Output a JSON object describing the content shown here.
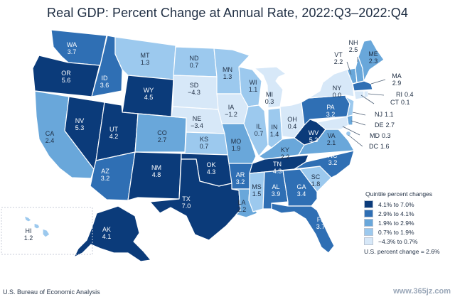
{
  "title": "Real GDP: Percent Change at Annual Rate, 2022:Q3–2022:Q4",
  "source": "U.S. Bureau of Economic Analysis",
  "watermark": "www.365jz.com",
  "colors": {
    "q1": "#0b3b7a",
    "q2": "#2f6fb4",
    "q3": "#69a7da",
    "q4": "#9cc9ee",
    "q5": "#d7e8f8"
  },
  "legend": {
    "title": "Quintile percent changes",
    "items": [
      {
        "label": "4.1% to 7.0%",
        "color": "#0b3b7a"
      },
      {
        "label": "2.9% to 4.1%",
        "color": "#2f6fb4"
      },
      {
        "label": "1.9% to 2.9%",
        "color": "#69a7da"
      },
      {
        "label": "0.7% to 1.9%",
        "color": "#9cc9ee"
      },
      {
        "label": "−4.3% to 0.7%",
        "color": "#d7e8f8"
      }
    ],
    "note": "U.S. percent change = 2.6%"
  },
  "states": {
    "WA": {
      "abbr": "WA",
      "value": "3.7"
    },
    "OR": {
      "abbr": "OR",
      "value": "5.6"
    },
    "CA": {
      "abbr": "CA",
      "value": "2.4"
    },
    "NV": {
      "abbr": "NV",
      "value": "5.3"
    },
    "ID": {
      "abbr": "ID",
      "value": "3.6"
    },
    "MT": {
      "abbr": "MT",
      "value": "1.3"
    },
    "WY": {
      "abbr": "WY",
      "value": "4.5"
    },
    "UT": {
      "abbr": "UT",
      "value": "4.2"
    },
    "AZ": {
      "abbr": "AZ",
      "value": "3.2"
    },
    "CO": {
      "abbr": "CO",
      "value": "2.7"
    },
    "NM": {
      "abbr": "NM",
      "value": "4.8"
    },
    "ND": {
      "abbr": "ND",
      "value": "0.7"
    },
    "SD": {
      "abbr": "SD",
      "value": "−4.3"
    },
    "NE": {
      "abbr": "NE",
      "value": "−3.4"
    },
    "KS": {
      "abbr": "KS",
      "value": "0.7"
    },
    "OK": {
      "abbr": "OK",
      "value": "4.3"
    },
    "TX": {
      "abbr": "TX",
      "value": "7.0"
    },
    "MN": {
      "abbr": "MN",
      "value": "1.3"
    },
    "IA": {
      "abbr": "IA",
      "value": "−1.2"
    },
    "MO": {
      "abbr": "MO",
      "value": "1.9"
    },
    "AR": {
      "abbr": "AR",
      "value": "3.2"
    },
    "LA": {
      "abbr": "LA",
      "value": "2.2"
    },
    "WI": {
      "abbr": "WI",
      "value": "1.1"
    },
    "IL": {
      "abbr": "IL",
      "value": "0.7"
    },
    "MI": {
      "abbr": "MI",
      "value": "0.3"
    },
    "IN": {
      "abbr": "IN",
      "value": "1.4"
    },
    "OH": {
      "abbr": "OH",
      "value": "0.4"
    },
    "KY": {
      "abbr": "KY",
      "value": "2.2"
    },
    "TN": {
      "abbr": "TN",
      "value": "4.3"
    },
    "MS": {
      "abbr": "MS",
      "value": "1.5"
    },
    "AL": {
      "abbr": "AL",
      "value": "3.9"
    },
    "GA": {
      "abbr": "GA",
      "value": "3.4"
    },
    "FL": {
      "abbr": "FL",
      "value": "3.7"
    },
    "SC": {
      "abbr": "SC",
      "value": "1.8"
    },
    "NC": {
      "abbr": "NC",
      "value": "3.2"
    },
    "VA": {
      "abbr": "VA",
      "value": "2.1"
    },
    "WV": {
      "abbr": "WV",
      "value": "5.2"
    },
    "PA": {
      "abbr": "PA",
      "value": "3.2"
    },
    "NY": {
      "abbr": "NY",
      "value": "0.0"
    },
    "VT": {
      "abbr": "VT",
      "value": "2.2"
    },
    "NH": {
      "abbr": "NH",
      "value": "2.5"
    },
    "ME": {
      "abbr": "ME",
      "value": "2.3"
    },
    "MA": {
      "abbr": "MA",
      "value": "2.9"
    },
    "RI": {
      "abbr": "RI",
      "value": "0.4"
    },
    "CT": {
      "abbr": "CT",
      "value": "0.1"
    },
    "NJ": {
      "abbr": "NJ",
      "value": "1.1"
    },
    "DE": {
      "abbr": "DE",
      "value": "2.7"
    },
    "MD": {
      "abbr": "MD",
      "value": "0.3"
    },
    "DC": {
      "abbr": "DC",
      "value": "1.6"
    },
    "AK": {
      "abbr": "AK",
      "value": "4.1"
    },
    "HI": {
      "abbr": "HI",
      "value": "1.2"
    }
  }
}
